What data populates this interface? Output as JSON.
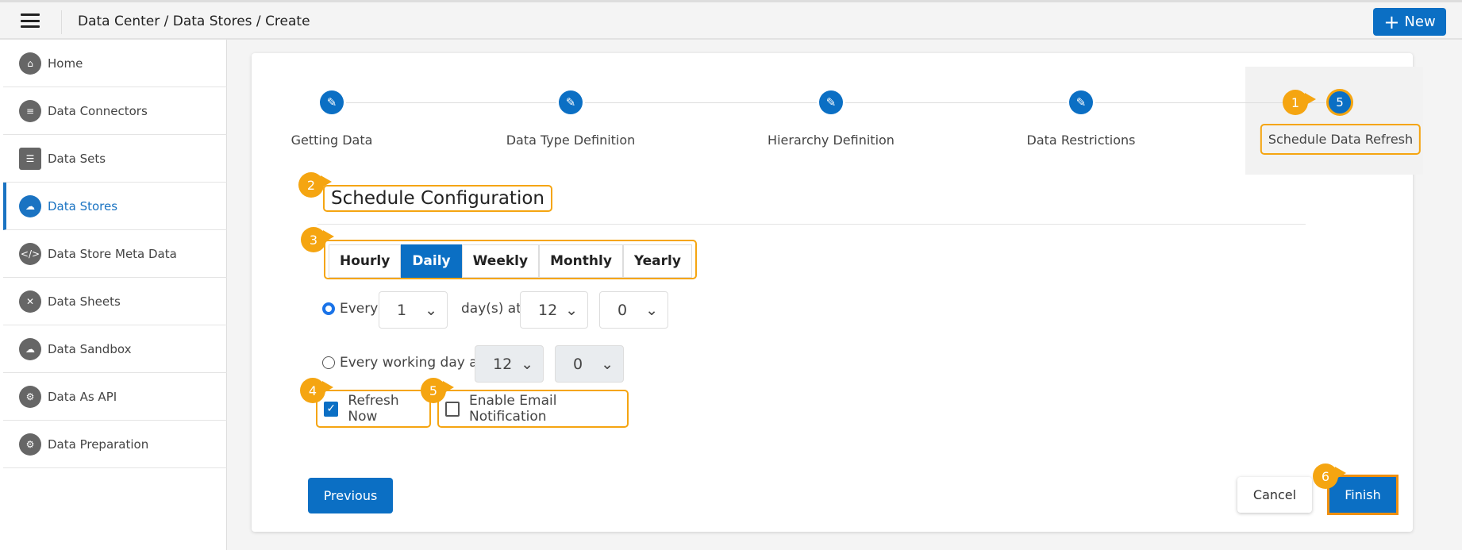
{
  "header": {
    "breadcrumb": "Data Center / Data Stores / Create",
    "new_label": "New"
  },
  "sidebar": {
    "items": [
      {
        "label": "Home",
        "icon": "home-db-icon"
      },
      {
        "label": "Data Connectors",
        "icon": "database-network-icon"
      },
      {
        "label": "Data Sets",
        "icon": "server-icon"
      },
      {
        "label": "Data Stores",
        "icon": "cloud-db-icon",
        "active": true
      },
      {
        "label": "Data Store Meta Data",
        "icon": "db-code-icon"
      },
      {
        "label": "Data Sheets",
        "icon": "sheets-icon"
      },
      {
        "label": "Data Sandbox",
        "icon": "cloud-box-icon"
      },
      {
        "label": "Data As API",
        "icon": "gear-api-icon"
      },
      {
        "label": "Data Preparation",
        "icon": "prep-gear-icon"
      }
    ]
  },
  "steps": [
    {
      "label": "Getting Data",
      "icon": "pencil-icon"
    },
    {
      "label": "Data Type Definition",
      "icon": "pencil-icon"
    },
    {
      "label": "Hierarchy Definition",
      "icon": "pencil-icon"
    },
    {
      "label": "Data Restrictions",
      "icon": "pencil-icon"
    },
    {
      "label": "Schedule Data Refresh",
      "number": "5"
    }
  ],
  "form": {
    "heading": "Schedule Configuration",
    "tabs": [
      "Hourly",
      "Daily",
      "Weekly",
      "Monthly",
      "Yearly"
    ],
    "active_tab": "Daily",
    "every_label": "Every",
    "every_value": "1",
    "days_at_label": "day(s) at",
    "every_hour": "12",
    "every_minute": "0",
    "working_label": "Every working day at",
    "working_hour": "12",
    "working_minute": "0",
    "refresh_now": "Refresh Now",
    "email_notify": "Enable Email Notification"
  },
  "buttons": {
    "previous": "Previous",
    "cancel": "Cancel",
    "finish": "Finish"
  },
  "callouts": [
    "1",
    "2",
    "3",
    "4",
    "5",
    "6"
  ],
  "colors": {
    "primary": "#0b6fc4",
    "callout": "#f5a511"
  }
}
